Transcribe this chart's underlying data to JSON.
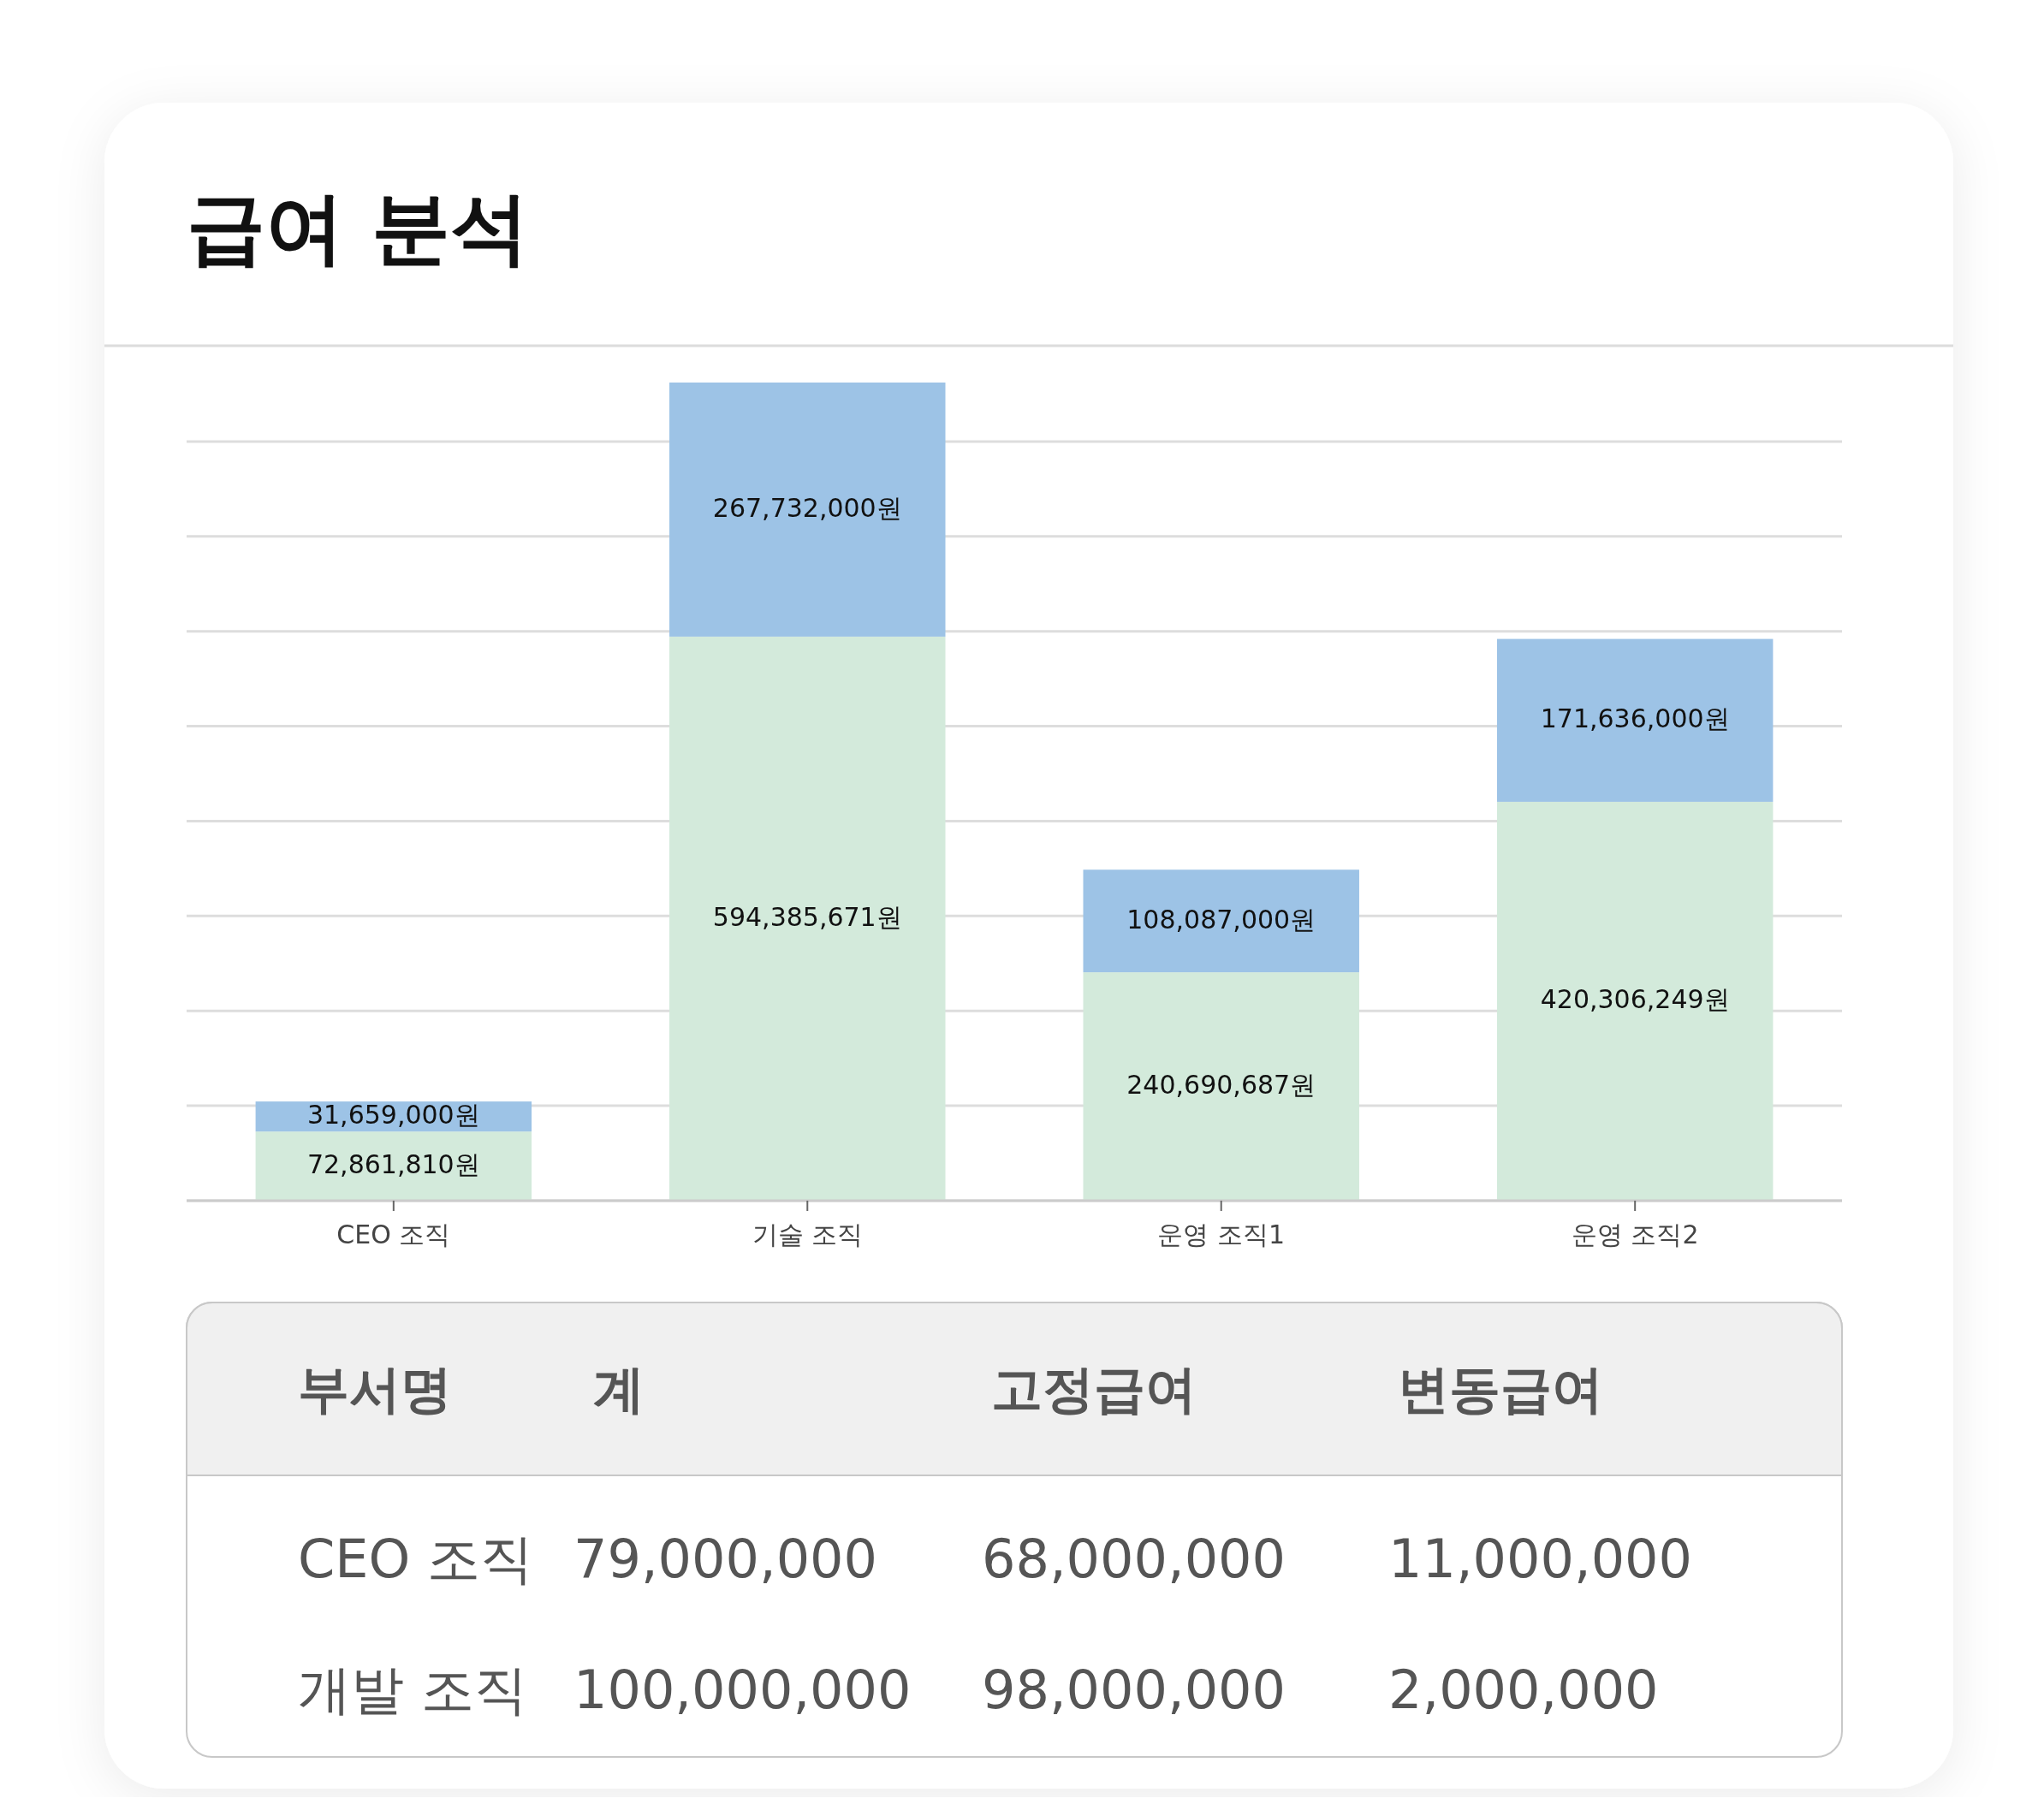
{
  "chart_data": [
    {
      "type": "bar",
      "title": "급여 분석",
      "stacked": true,
      "grid": "y",
      "tick_labels": "x",
      "categories": [
        "CEO 조직",
        "기술 조직",
        "운영 조직1",
        "운영 조직2"
      ],
      "ylim": [
        0,
        862117671
      ],
      "yticks": [
        {
          "value": 0,
          "label": null
        },
        {
          "value": 100000000,
          "label": null
        },
        {
          "value": 200000000,
          "label": null
        },
        {
          "value": 300000000,
          "label": null
        },
        {
          "value": 400000000,
          "label": null
        },
        {
          "value": 500000000,
          "label": null
        },
        {
          "value": 600000000,
          "label": null
        },
        {
          "value": 700000000,
          "label": null
        },
        {
          "value": 800000000,
          "label": null
        }
      ],
      "series": [
        {
          "color": "#d3eadb",
          "values": [
            72861810,
            594385671,
            240690687,
            420306249
          ],
          "value_labels": [
            "72,861,810원",
            "594,385,671원",
            "240,690,687원",
            "420,306,249원"
          ]
        },
        {
          "color": "#9dc3e6",
          "values": [
            31659000,
            267732000,
            108087000,
            171636000
          ],
          "value_labels": [
            "31,659,000원",
            "267,732,000원",
            "108,087,000원",
            "171,636,000원"
          ]
        }
      ]
    },
    {
      "type": "other",
      "annotations": [
        "부서명",
        "계",
        "고정급여",
        "변동급여",
        "CEO 조직",
        "79,000,000",
        "68,000,000",
        "11,000,000",
        "개발 조직",
        "100,000,000",
        "98,000,000",
        "2,000,000"
      ]
    }
  ]
}
